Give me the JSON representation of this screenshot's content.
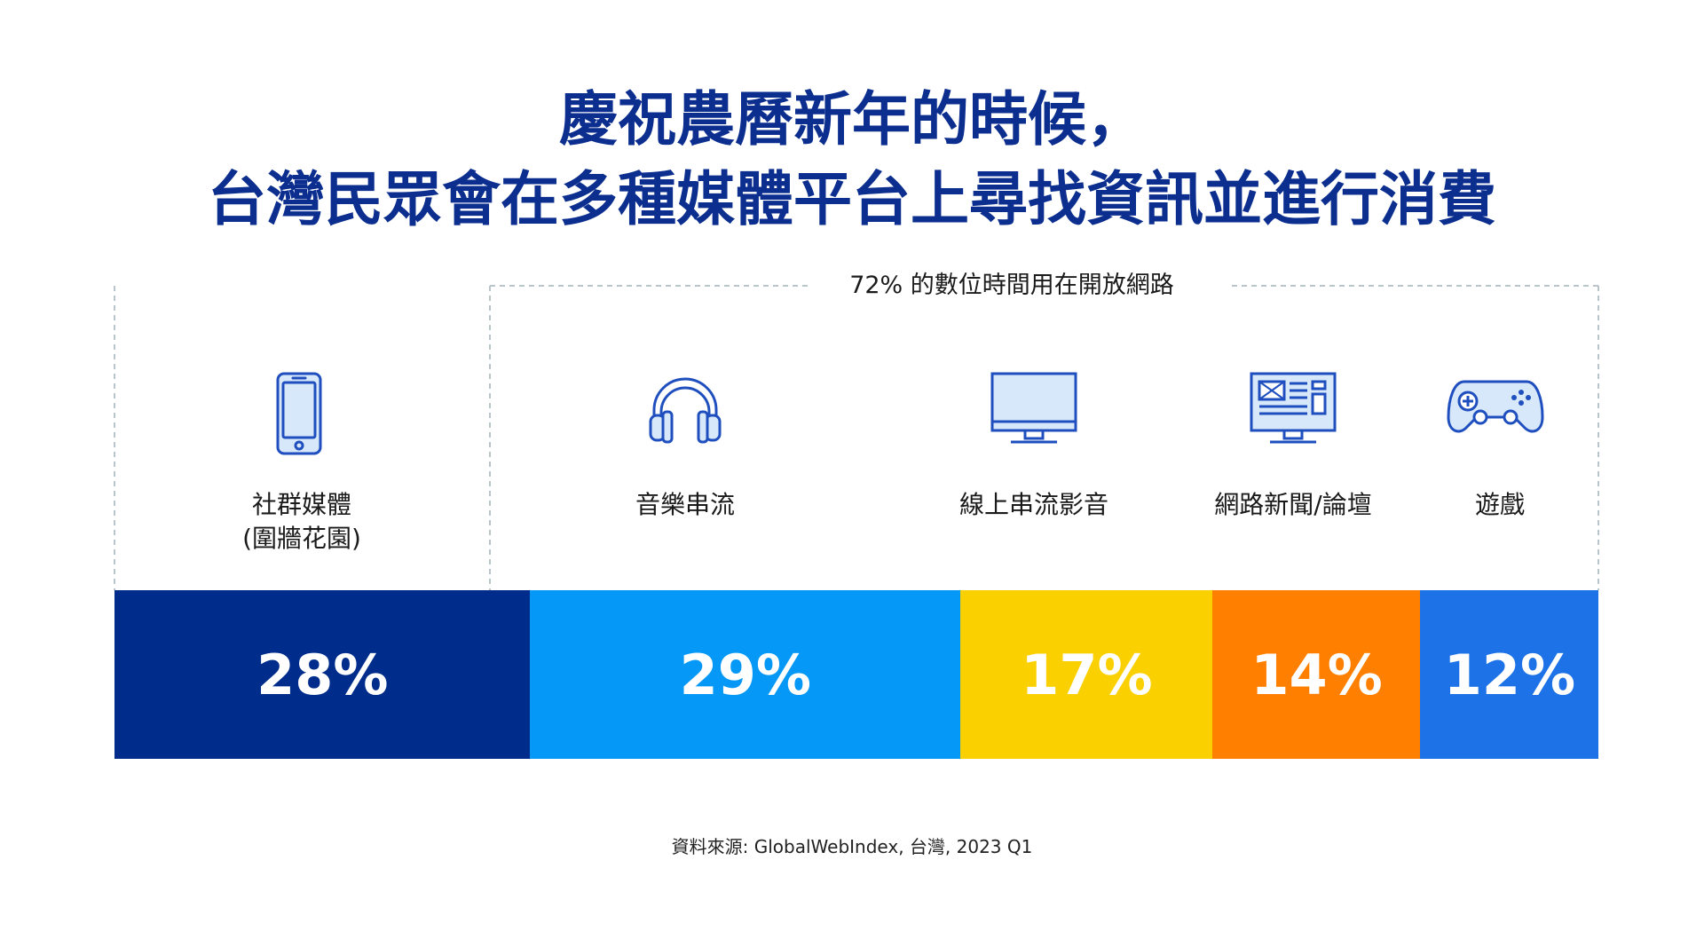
{
  "title": {
    "line1": "慶祝農曆新年的時候，",
    "line2": "台灣民眾會在多種媒體平台上尋找資訊並進行消費"
  },
  "group_label": "72% 的數位時間用在開放網路",
  "source": "資料來源: GlobalWebIndex, 台灣, 2023 Q1",
  "colors": {
    "title": "#0b2e8f",
    "icon_stroke": "#1f4fbf",
    "icon_fill": "#d8e8fb",
    "bracket": "#b8c6cc"
  },
  "chart_data": {
    "type": "bar",
    "orientation": "stacked-horizontal",
    "unit": "%",
    "categories": [
      "社群媒體\n(圍牆花園)",
      "音樂串流",
      "線上串流影音",
      "網路新聞/論壇",
      "遊戲"
    ],
    "values": [
      28,
      29,
      17,
      14,
      12
    ],
    "labels": [
      "28%",
      "29%",
      "17%",
      "14%",
      "12%"
    ],
    "colors": [
      "#002d8c",
      "#0598f7",
      "#fbd000",
      "#ff8000",
      "#1c72e6"
    ],
    "icons": [
      "smartphone-icon",
      "headphones-icon",
      "monitor-icon",
      "news-icon",
      "gamepad-icon"
    ]
  },
  "categories": [
    {
      "line1": "社群媒體",
      "line2": "(圍牆花園)"
    },
    {
      "line1": "音樂串流",
      "line2": ""
    },
    {
      "line1": "線上串流影音",
      "line2": ""
    },
    {
      "line1": "網路新聞/論壇",
      "line2": ""
    },
    {
      "line1": "遊戲",
      "line2": ""
    }
  ]
}
